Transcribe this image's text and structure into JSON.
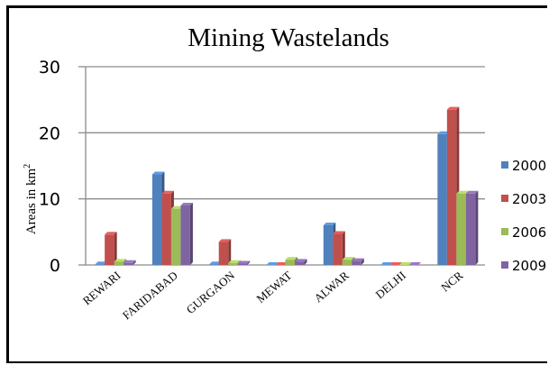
{
  "chart_data": {
    "type": "bar",
    "title": "Mining Wastelands",
    "ylabel": "Areas in km",
    "ylabel_superscript": "2",
    "xlabel": "",
    "ylim": [
      0,
      30
    ],
    "yticks": [
      0,
      10,
      20,
      30
    ],
    "grid": true,
    "legend_position": "right",
    "categories": [
      "REWARI",
      "FARIDABAD",
      "GURGAON",
      "MEWAT",
      "ALWAR",
      "DELHI",
      "NCR"
    ],
    "series": [
      {
        "name": "2000",
        "color": "#4f81bd",
        "values": [
          0.1,
          13.7,
          0.1,
          0.0,
          6.0,
          0.0,
          19.8
        ]
      },
      {
        "name": "2003",
        "color": "#c0504d",
        "values": [
          4.6,
          10.8,
          3.5,
          0.0,
          4.7,
          0.0,
          23.5
        ]
      },
      {
        "name": "2006",
        "color": "#9bbb59",
        "values": [
          0.5,
          8.5,
          0.3,
          0.8,
          0.8,
          0.0,
          10.8
        ]
      },
      {
        "name": "2009",
        "color": "#8064a2",
        "values": [
          0.3,
          9.0,
          0.2,
          0.5,
          0.6,
          0.0,
          10.8
        ]
      }
    ]
  }
}
